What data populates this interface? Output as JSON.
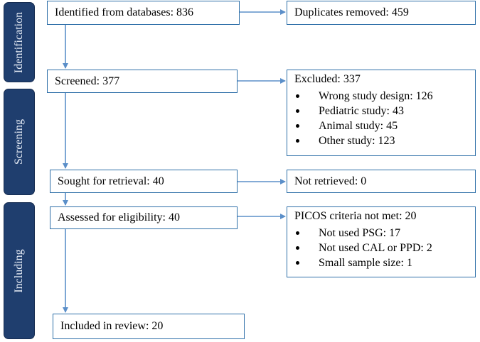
{
  "phases": {
    "identification": "Identification",
    "screening": "Screening",
    "including": "Including"
  },
  "boxes": {
    "identified": "Identified from databases: 836",
    "duplicates": "Duplicates removed: 459",
    "screened": "Screened: 377",
    "excluded": {
      "title": "Excluded: 337",
      "items": [
        "Wrong study design: 126",
        "Pediatric study: 43",
        "Animal study: 45",
        "Other study: 123"
      ]
    },
    "sought": "Sought for retrieval: 40",
    "not_retrieved": "Not retrieved: 0",
    "assessed": "Assessed for eligibility: 40",
    "picos": {
      "title": "PICOS criteria not met: 20",
      "items": [
        "Not used PSG: 17",
        "Not used CAL or PPD: 2",
        "Small sample size: 1"
      ]
    },
    "included": "Included in review: 20"
  },
  "colors": {
    "phase_fill": "#1f3e6e",
    "phase_text": "#e8eef7",
    "box_border": "#2e6fa8",
    "arrow": "#5b8fc9"
  }
}
